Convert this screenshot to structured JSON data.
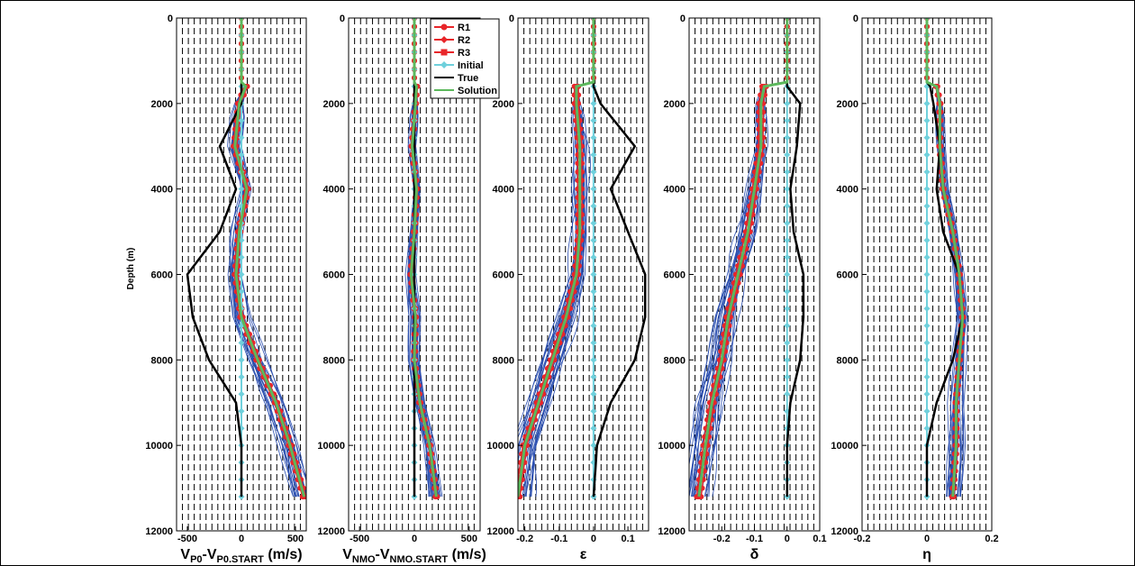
{
  "figure": {
    "border": true
  },
  "chart_data": {
    "type": "line",
    "ylabel": "Depth (m)",
    "ylim": [
      0,
      12000
    ],
    "y_reversed": true,
    "y_ticks": [
      "0",
      "2000",
      "4000",
      "6000",
      "8000",
      "10000",
      "12000"
    ],
    "grid": "dashed vertical",
    "colors": {
      "R1": "#e8262a",
      "R2": "#e8262a",
      "R3": "#e8262a",
      "Initial": "#6fd0dc",
      "True": "#000000",
      "Solution": "#5cb85c",
      "realizations": "#2b4fb0"
    },
    "legend": {
      "position": "top-left of panel 3",
      "entries": [
        {
          "name": "R1",
          "marker": "circle"
        },
        {
          "name": "R2",
          "marker": "diamond"
        },
        {
          "name": "R3",
          "marker": "square"
        },
        {
          "name": "Initial",
          "marker": "diamond"
        },
        {
          "name": "True",
          "marker": "none"
        },
        {
          "name": "Solution",
          "marker": "none"
        }
      ]
    },
    "panels": [
      {
        "xlabel": {
          "main": "V",
          "sub1": "P0",
          "mid": "-V",
          "sub2": "P0.START",
          "tail": " (m/s)"
        },
        "xlim": [
          -600,
          600
        ],
        "x_ticks": [
          "-500",
          "0",
          "500"
        ],
        "x_tick_values": [
          -500,
          0,
          500
        ],
        "depth": [
          0,
          1500,
          1600,
          2000,
          3000,
          4000,
          5000,
          6000,
          7000,
          8000,
          9000,
          10000,
          11200
        ],
        "true": [
          0,
          0,
          0,
          0,
          -200,
          -50,
          -200,
          -500,
          -450,
          -300,
          -50,
          0,
          0
        ],
        "solution": [
          0,
          0,
          40,
          -20,
          -60,
          50,
          -20,
          -50,
          0,
          150,
          320,
          450,
          580
        ],
        "initial": [
          0,
          0,
          0,
          0,
          0,
          0,
          0,
          0,
          0,
          0,
          0,
          0,
          0
        ],
        "spread": 100
      },
      {
        "xlabel": {
          "main": "V",
          "sub1": "NMO",
          "mid": "-V",
          "sub2": "NMO.START",
          "tail": " (m/s)"
        },
        "xlim": [
          -600,
          600
        ],
        "x_ticks": [
          "-500",
          "0",
          "500"
        ],
        "x_tick_values": [
          -500,
          0,
          500
        ],
        "depth": [
          0,
          1500,
          1600,
          2000,
          3000,
          4000,
          5000,
          6000,
          7000,
          8000,
          9000,
          10000,
          11200
        ],
        "true": [
          0,
          0,
          0,
          0,
          0,
          0,
          0,
          0,
          0,
          0,
          0,
          0,
          0
        ],
        "solution": [
          0,
          0,
          20,
          10,
          -20,
          20,
          0,
          -30,
          10,
          0,
          50,
          140,
          200
        ],
        "initial": [
          0,
          0,
          0,
          0,
          0,
          0,
          0,
          0,
          0,
          0,
          0,
          0,
          0
        ],
        "spread": 60
      },
      {
        "xlabel": {
          "main": "ε"
        },
        "xlim": [
          -0.22,
          0.16
        ],
        "x_ticks": [
          "-0.2",
          "-0.1",
          "0",
          "0.1"
        ],
        "x_tick_values": [
          -0.2,
          -0.1,
          0,
          0.1
        ],
        "depth": [
          0,
          1500,
          1600,
          2000,
          3000,
          4000,
          5000,
          6000,
          7000,
          8000,
          9000,
          10000,
          11200
        ],
        "true": [
          0,
          0,
          0,
          0.02,
          0.12,
          0.05,
          0.1,
          0.15,
          0.15,
          0.12,
          0.05,
          0.01,
          0
        ],
        "solution": [
          0,
          0,
          -0.05,
          -0.05,
          -0.04,
          -0.04,
          -0.04,
          -0.05,
          -0.08,
          -0.12,
          -0.16,
          -0.2,
          -0.22
        ],
        "initial": [
          0,
          0,
          0,
          0,
          0,
          0,
          0,
          0,
          0,
          0,
          0,
          0,
          0
        ],
        "spread": 0.04
      },
      {
        "xlabel": {
          "main": "δ"
        },
        "xlim": [
          -0.3,
          0.1
        ],
        "x_ticks": [
          "-0.2",
          "-0.1",
          "0",
          "0.1"
        ],
        "x_tick_values": [
          -0.2,
          -0.1,
          0,
          0.1
        ],
        "depth": [
          0,
          1500,
          1600,
          2000,
          3000,
          4000,
          5000,
          6000,
          7000,
          8000,
          9000,
          10000,
          11200
        ],
        "true": [
          0,
          0,
          0,
          0.04,
          0.03,
          0.01,
          0.02,
          0.05,
          0.05,
          0.04,
          0.01,
          0,
          0
        ],
        "solution": [
          0,
          0,
          -0.07,
          -0.08,
          -0.08,
          -0.1,
          -0.12,
          -0.15,
          -0.18,
          -0.2,
          -0.23,
          -0.25,
          -0.27
        ],
        "initial": [
          0,
          0,
          0,
          0,
          0,
          0,
          0,
          0,
          0,
          0,
          0,
          0,
          0
        ],
        "spread": 0.045
      },
      {
        "xlabel": {
          "main": "η"
        },
        "xlim": [
          -0.2,
          0.2
        ],
        "x_ticks": [
          "-0.2",
          "0",
          "0.2"
        ],
        "x_tick_values": [
          -0.2,
          0,
          0.2
        ],
        "depth": [
          0,
          1500,
          1600,
          2000,
          3000,
          4000,
          5000,
          6000,
          7000,
          8000,
          9000,
          10000,
          11200
        ],
        "true": [
          0,
          0,
          0.01,
          0.02,
          0.04,
          0.03,
          0.05,
          0.1,
          0.11,
          0.08,
          0.03,
          0,
          0
        ],
        "solution": [
          0,
          0,
          0.03,
          0.04,
          0.04,
          0.05,
          0.08,
          0.1,
          0.11,
          0.1,
          0.09,
          0.09,
          0.08
        ],
        "initial": [
          0,
          0,
          0,
          0,
          0,
          0,
          0,
          0,
          0,
          0,
          0,
          0,
          0
        ],
        "spread": 0.02
      }
    ]
  }
}
